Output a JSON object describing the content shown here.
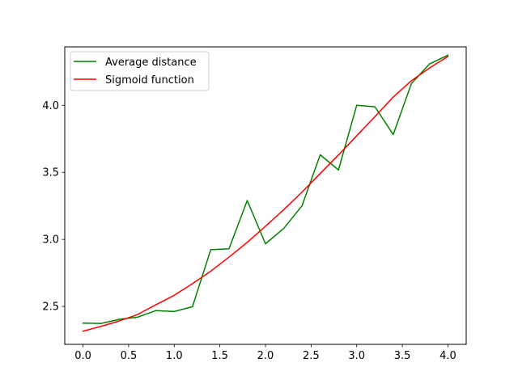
{
  "chart_data": {
    "type": "line",
    "title": "",
    "xlabel": "",
    "ylabel": "",
    "xlim": [
      -0.2,
      4.2
    ],
    "ylim": [
      2.217,
      4.436
    ],
    "x_ticks": [
      0.0,
      0.5,
      1.0,
      1.5,
      2.0,
      2.5,
      3.0,
      3.5,
      4.0
    ],
    "x_tick_labels": [
      "0.0",
      "0.5",
      "1.0",
      "1.5",
      "2.0",
      "2.5",
      "3.0",
      "3.5",
      "4.0"
    ],
    "y_ticks": [
      2.5,
      3.0,
      3.5,
      4.0
    ],
    "y_tick_labels": [
      "2.5",
      "3.0",
      "3.5",
      "4.0"
    ],
    "grid": false,
    "legend_position": "top-left",
    "x": [
      0.0,
      0.2,
      0.4,
      0.6,
      0.8,
      1.0,
      1.2,
      1.4,
      1.6,
      1.8,
      2.0,
      2.2,
      2.4,
      2.6,
      2.8,
      3.0,
      3.2,
      3.4,
      3.6,
      3.8,
      4.0
    ],
    "series": [
      {
        "name": "Average distance",
        "color": "#008000",
        "values": [
          2.375,
          2.373,
          2.404,
          2.42,
          2.469,
          2.462,
          2.498,
          2.923,
          2.93,
          3.29,
          2.967,
          3.082,
          3.25,
          3.631,
          3.518,
          4.0,
          3.989,
          3.782,
          4.163,
          4.31,
          4.374
        ]
      },
      {
        "name": "Sigmoid function",
        "color": "#ff0000",
        "values": [
          2.315,
          2.352,
          2.392,
          2.44,
          2.513,
          2.583,
          2.67,
          2.763,
          2.868,
          2.978,
          3.098,
          3.222,
          3.352,
          3.492,
          3.63,
          3.773,
          3.916,
          4.062,
          4.184,
          4.279,
          4.365
        ]
      }
    ]
  }
}
